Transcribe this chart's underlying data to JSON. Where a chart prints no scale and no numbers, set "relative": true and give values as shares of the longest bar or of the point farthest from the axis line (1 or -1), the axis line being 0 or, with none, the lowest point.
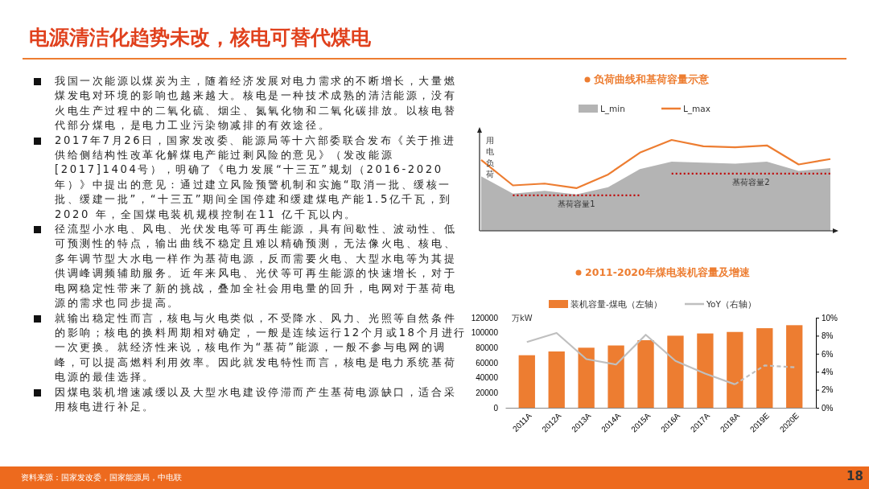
{
  "chart_data": [
    {
      "type": "other",
      "title": "电源清洁化趋势未改，核电可替代煤电",
      "annotations": [
        "我国一次能源以煤炭为主，随着经济发展对电力需求的不断增长，大量燃煤发电对环境的影响也越来越大。核电是一种技术成熟的清洁能源，没有火电生产过程中的二氧化硫、烟尘、氮氧化物和二氧化碳排放。以核电替代部分煤电，是电力工业污染物减排的有效途径。",
        "2017年7月26日，国家发改委、能源局等十六部委联合发布《关于推进供给侧结构性改革化解煤电产能过剩风险的意见》（发改能源[2017]1404号），明确了《电力发展“十三五”规划（2016-2020年）》中提出的意见：通过建立风险预警机制和实施“取消一批、缓核一批、缓建一批”，“十三五”期间全国停建和缓建煤电产能1.5亿千瓦，到2020 年，全国煤电装机规模控制在11 亿千瓦以内。",
        "径流型小水电、风电、光伏发电等可再生能源，具有间歇性、波动性、低可预测性的特点，输出曲线不稳定且难以精确预测，无法像火电、核电、多年调节型大水电一样作为基荷电源，反而需要火电、大型水电等为其提供调峰调频辅助服务。近年来风电、光伏等可再生能源的快速增长，对于电网稳定性带来了新的挑战，叠加全社会用电量的回升，电网对于基荷电源的需求也同步提高。",
        "就输出稳定性而言，核电与火电类似，不受降水、风力、光照等自然条件的影响；核电的换料周期相对确定，一般是连续运行12个月或18个月进行一次更换。就经济性来说，核电作为“基荷”能源，一般不参与电网的调峰，可以提高燃料利用效率。因此就发电特性而言，核电是电力系统基荷电源的最佳选择。",
        "因煤电装机增速减缓以及大型水电建设停滞而产生基荷电源缺口，适合采用核电进行补足。",
        "资料来源：国家发改委，国家能源局，中电联",
        "18"
      ]
    },
    {
      "type": "area",
      "title": "负荷曲线和基荷容量示意",
      "ylabel": "用电负荷",
      "relative": true,
      "legend": "top",
      "categories": [
        null,
        null,
        null,
        null,
        null,
        null,
        null,
        null,
        null,
        null,
        null,
        null
      ],
      "series": [
        {
          "name": "L_min",
          "type": "area",
          "color": "#b4b4b4",
          "values": [
            0.6,
            0.41,
            0.44,
            0.4,
            0.48,
            0.68,
            0.76,
            0.75,
            0.74,
            0.76,
            0.66,
            0.69
          ]
        },
        {
          "name": "L_max",
          "type": "line",
          "color": "#ed7d31",
          "values": [
            0.78,
            0.5,
            0.52,
            0.47,
            0.62,
            0.86,
            1,
            0.93,
            0.92,
            0.94,
            0.73,
            0.79
          ]
        },
        {
          "name": "基荷容量1",
          "type": "line",
          "line_style": "dotted",
          "color": "#c00000",
          "values": [
            null,
            0.39,
            0.39,
            0.39,
            0.39,
            0.39,
            null,
            null,
            null,
            null,
            null,
            null
          ]
        },
        {
          "name": "基荷容量2",
          "type": "line",
          "line_style": "dotted",
          "color": "#c00000",
          "values": [
            null,
            null,
            null,
            null,
            null,
            null,
            0.63,
            0.63,
            0.63,
            0.63,
            0.63,
            0.63
          ]
        }
      ]
    },
    {
      "type": "bar",
      "title": "2011-2020年煤电装机容量及增速",
      "ylabel": "万kW",
      "legend": "top",
      "categories": [
        "2011A",
        "2012A",
        "2013A",
        "2014A",
        "2015A",
        "2016A",
        "2017A",
        "2018A",
        "2019E",
        "2020E"
      ],
      "ylim": [
        0,
        120000
      ],
      "yticks": [
        0,
        20000,
        40000,
        60000,
        80000,
        100000,
        120000
      ],
      "y2lim": [
        0,
        10
      ],
      "y2ticks": [
        {
          "value": 0,
          "label": "0%"
        },
        {
          "value": 2,
          "label": "2%"
        },
        {
          "value": 4,
          "label": "4%"
        },
        {
          "value": 6,
          "label": "6%"
        },
        {
          "value": 8,
          "label": "8%"
        },
        {
          "value": 10,
          "label": "10%"
        }
      ],
      "series": [
        {
          "name": "装机容量-煤电（左轴）",
          "type": "bar",
          "color": "#ed7d31",
          "values": [
            70000,
            75000,
            80000,
            83000,
            90000,
            96000,
            99000,
            101000,
            106000,
            110000
          ]
        },
        {
          "name": "YoY（右轴）",
          "type": "line",
          "axis": "y2",
          "line_style": "solid",
          "color": "#bfbfbf",
          "values": [
            7.3,
            8.3,
            5.4,
            4.8,
            8.1,
            5.2,
            3.8,
            2.6,
            null,
            null
          ]
        },
        {
          "type": "line",
          "axis": "y2",
          "line_style": "dashed",
          "color": "#bfbfbf",
          "values": [
            null,
            null,
            null,
            null,
            null,
            null,
            null,
            2.6,
            4.7,
            4.5
          ]
        }
      ]
    }
  ]
}
